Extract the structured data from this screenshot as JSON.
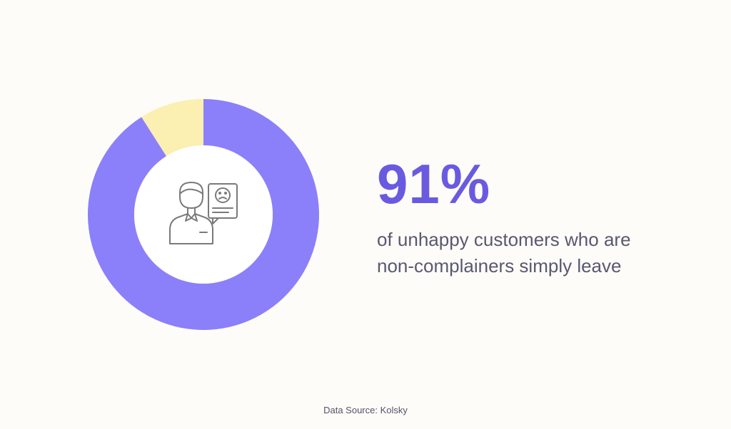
{
  "chart_data": {
    "type": "pie",
    "categories": [
      "non-complainers who simply leave",
      "other"
    ],
    "values": [
      91,
      9
    ],
    "colors": {
      "primary": "#8b80fa",
      "secondary": "#fbefb1",
      "hole": "#ffffff",
      "accent": "#6a5ae0"
    }
  },
  "stat": {
    "value": "91%",
    "description_line1": "of unhappy customers who are",
    "description_line2": "non-complainers simply leave"
  },
  "footer": {
    "source": "Data Source: Kolsky"
  },
  "icons": {
    "center": "unhappy-customer-icon"
  }
}
